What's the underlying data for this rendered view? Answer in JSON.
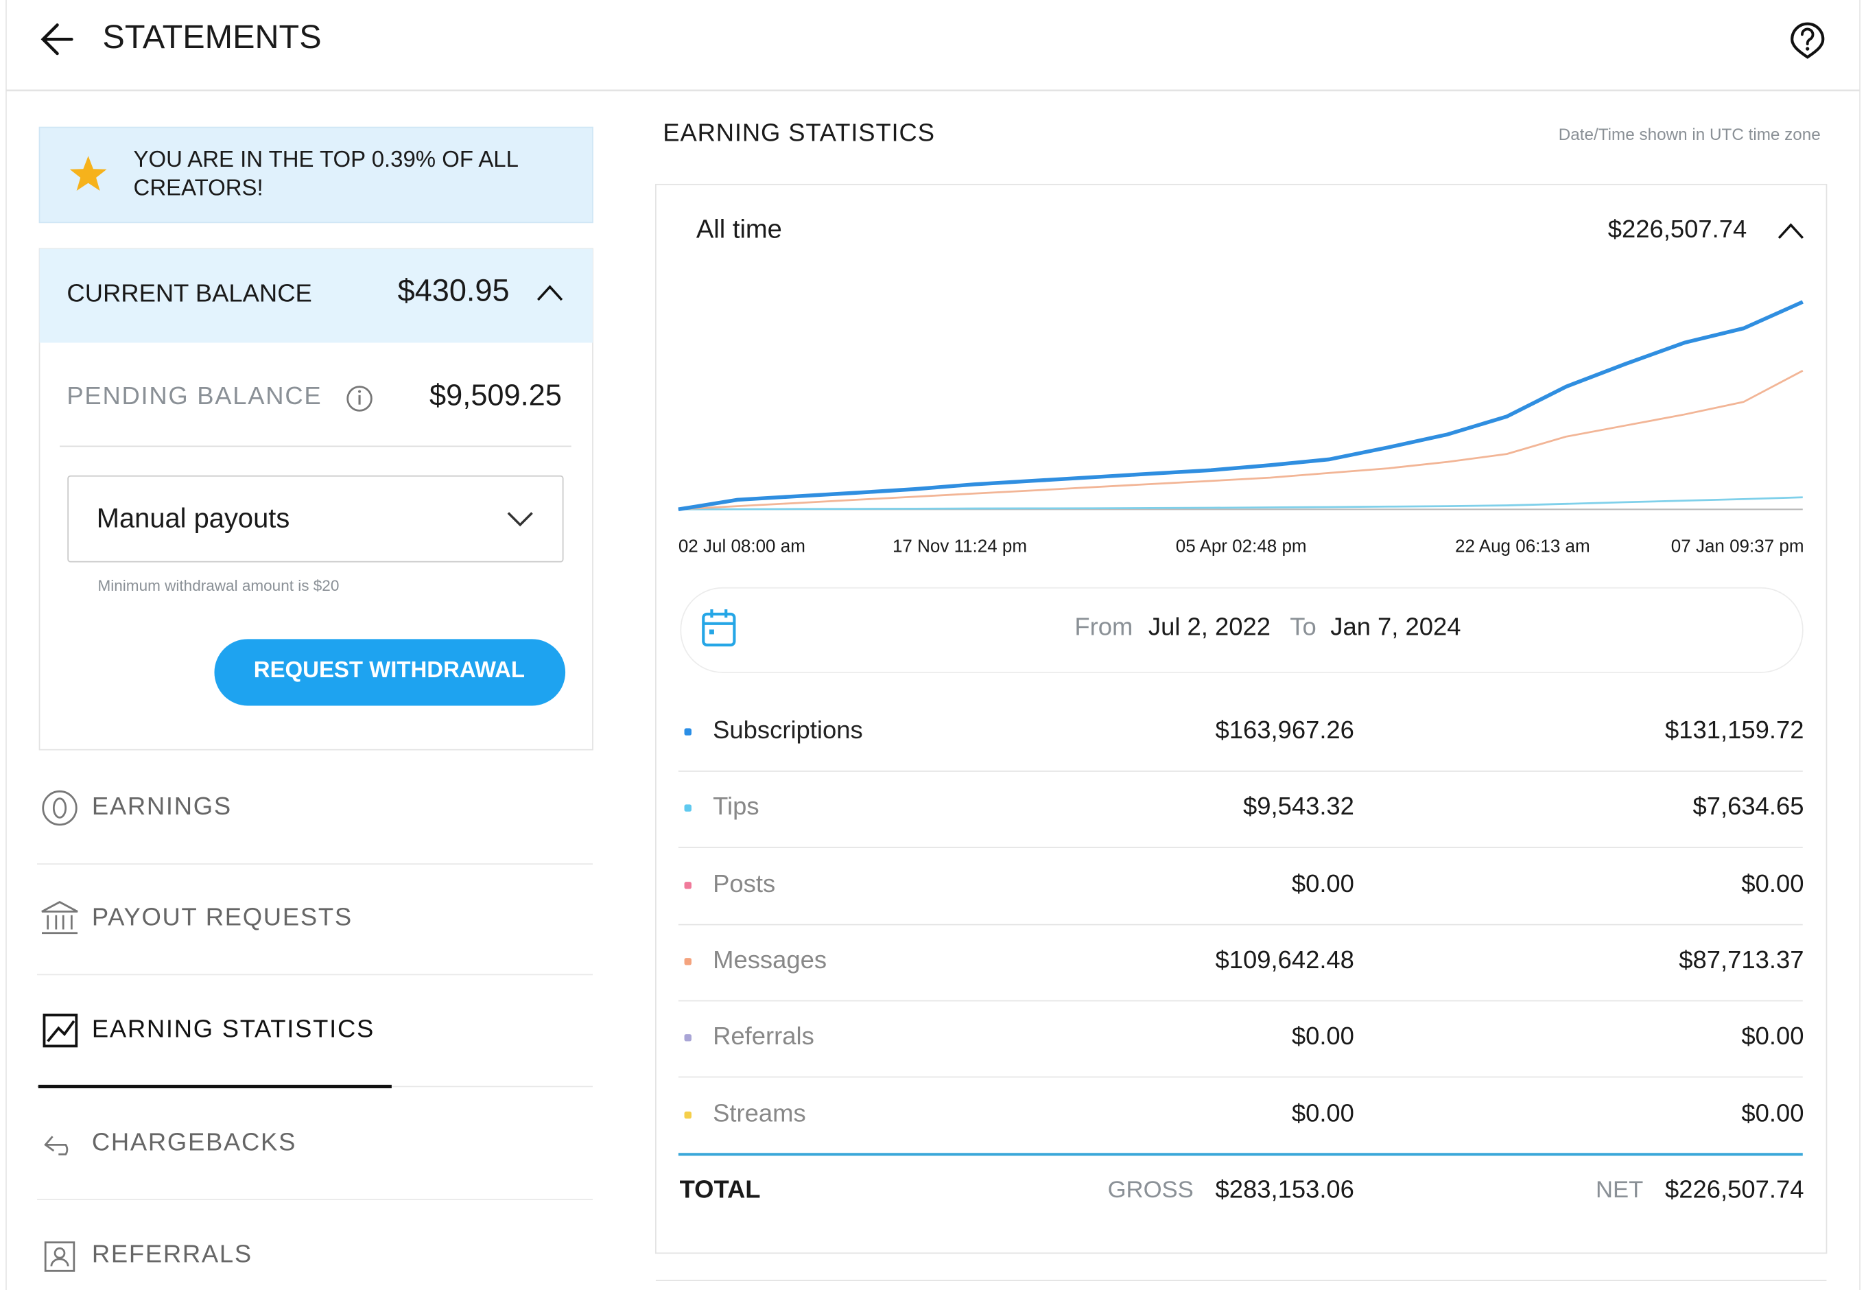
{
  "header": {
    "title": "STATEMENTS"
  },
  "banner": {
    "text_lines": [
      "YOU ARE IN THE TOP 0.39% OF ALL",
      "CREATORS!"
    ]
  },
  "balance": {
    "current_label": "CURRENT BALANCE",
    "current_value": "$430.95",
    "pending_label": "PENDING BALANCE",
    "pending_value": "$9,509.25",
    "payout_select": "Manual payouts",
    "minimum_note": "Minimum withdrawal amount is $20",
    "button": "REQUEST WITHDRAWAL"
  },
  "nav": {
    "items": [
      "EARNINGS",
      "PAYOUT REQUESTS",
      "EARNING STATISTICS",
      "CHARGEBACKS",
      "REFERRALS"
    ],
    "active": 2
  },
  "section": {
    "title": "EARNING STATISTICS",
    "timezone_note": "Date/Time shown in UTC time zone"
  },
  "card": {
    "period": "All time",
    "total": "$226,507.74",
    "date_range": {
      "from_label": "From",
      "from": "Jul 2, 2022",
      "to_label": "To",
      "to": "Jan 7, 2024"
    }
  },
  "chart_data": {
    "type": "line",
    "xtick_labels": [
      "02 Jul 08:00 am",
      "17 Nov 11:24 pm",
      "05 Apr 02:48 pm",
      "22 Aug 06:13 am",
      "07 Jan 09:37 pm"
    ],
    "ylim": [
      0,
      140000
    ],
    "series": [
      {
        "name": "Tips",
        "color": "#7fd0ea",
        "values": [
          0,
          100,
          200,
          300,
          400,
          500,
          600,
          700,
          800,
          1000,
          1200,
          1400,
          1700,
          2000,
          2500,
          3500,
          4500,
          5500,
          6500,
          7630
        ]
      },
      {
        "name": "Messages",
        "color": "#f2b596",
        "values": [
          0,
          2000,
          4000,
          6000,
          8000,
          10000,
          12000,
          14000,
          16000,
          18000,
          20000,
          23000,
          26000,
          30000,
          35000,
          46000,
          53000,
          60000,
          68000,
          87700
        ]
      },
      {
        "name": "Subscriptions",
        "color": "#2f8ee0",
        "values": [
          0,
          6000,
          8300,
          10500,
          12800,
          15800,
          18100,
          20300,
          22600,
          24800,
          27900,
          31600,
          39200,
          47400,
          58700,
          77600,
          91900,
          105400,
          114500,
          131160
        ]
      }
    ]
  },
  "table": {
    "rows": [
      {
        "name": "Subscriptions",
        "color": "#2a8ee6",
        "gross": "$163,967.26",
        "net": "$131,159.72"
      },
      {
        "name": "Tips",
        "color": "#5fc9ef",
        "gross": "$9,543.32",
        "net": "$7,634.65"
      },
      {
        "name": "Posts",
        "color": "#f07a9a",
        "gross": "$0.00",
        "net": "$0.00"
      },
      {
        "name": "Messages",
        "color": "#f4a37e",
        "gross": "$109,642.48",
        "net": "$87,713.37"
      },
      {
        "name": "Referrals",
        "color": "#a9a5d6",
        "gross": "$0.00",
        "net": "$0.00"
      },
      {
        "name": "Streams",
        "color": "#f5cf4a",
        "gross": "$0.00",
        "net": "$0.00"
      }
    ],
    "total": {
      "label": "TOTAL",
      "gross_label": "GROSS",
      "gross": "$283,153.06",
      "net_label": "NET",
      "net": "$226,507.74"
    }
  }
}
